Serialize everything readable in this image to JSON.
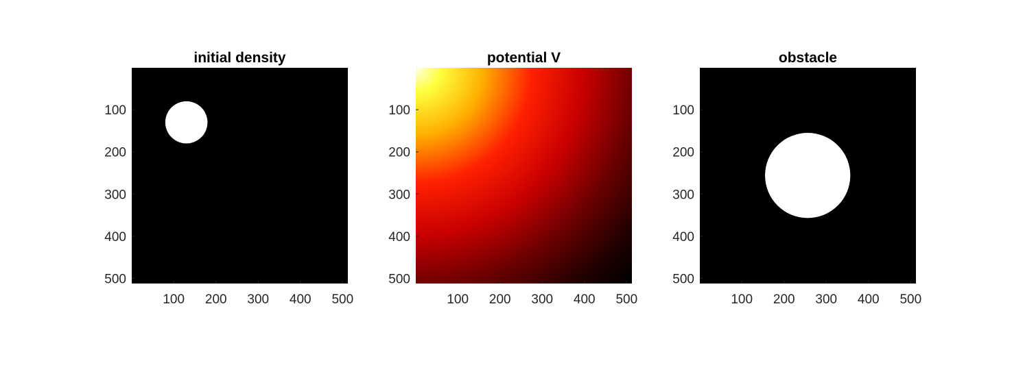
{
  "chart_data": [
    {
      "type": "heatmap",
      "title": "initial density",
      "colormap": "gray",
      "background_color": "#000000",
      "feature": {
        "shape": "disk",
        "center": [
          130,
          130
        ],
        "radius": 50,
        "color": "#ffffff"
      },
      "xlim": [
        1,
        512
      ],
      "ylim": [
        1,
        512
      ],
      "y_direction": "reverse",
      "xticks": [
        100,
        200,
        300,
        400,
        500
      ],
      "yticks": [
        100,
        200,
        300,
        400,
        500
      ]
    },
    {
      "type": "heatmap",
      "title": "potential V",
      "colormap": "hot",
      "description_values": {
        "max_corner": "top-left",
        "min_corner": "bottom-right"
      },
      "colors": {
        "top_left": "#ffffe0",
        "mid": "#ff0000",
        "bottom_right": "#000000"
      },
      "xlim": [
        1,
        512
      ],
      "ylim": [
        1,
        512
      ],
      "y_direction": "reverse",
      "xticks": [
        100,
        200,
        300,
        400,
        500
      ],
      "yticks": [
        100,
        200,
        300,
        400,
        500
      ]
    },
    {
      "type": "heatmap",
      "title": "obstacle",
      "colormap": "gray",
      "background_color": "#000000",
      "feature": {
        "shape": "disk",
        "center": [
          256,
          256
        ],
        "radius": 101,
        "color": "#ffffff"
      },
      "xlim": [
        1,
        512
      ],
      "ylim": [
        1,
        512
      ],
      "y_direction": "reverse",
      "xticks": [
        100,
        200,
        300,
        400,
        500
      ],
      "yticks": [
        100,
        200,
        300,
        400,
        500
      ]
    }
  ]
}
